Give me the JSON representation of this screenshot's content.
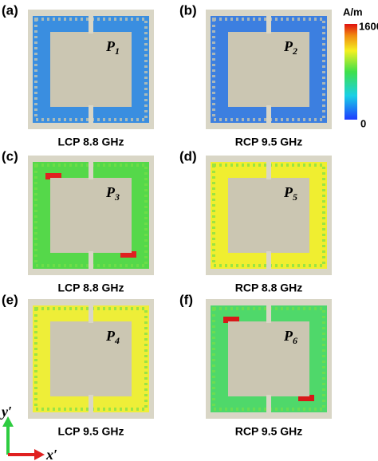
{
  "panels": [
    {
      "tag": "(a)",
      "port": {
        "letter": "P",
        "sub": "1"
      },
      "caption": "LCP  8.8 GHz"
    },
    {
      "tag": "(b)",
      "port": {
        "letter": "P",
        "sub": "2"
      },
      "caption": "RCP  9.5 GHz"
    },
    {
      "tag": "(c)",
      "port": {
        "letter": "P",
        "sub": "3"
      },
      "caption": "LCP  8.8 GHz"
    },
    {
      "tag": "(d)",
      "port": {
        "letter": "P",
        "sub": "5"
      },
      "caption": "RCP  8.8 GHz"
    },
    {
      "tag": "(e)",
      "port": {
        "letter": "P",
        "sub": "4"
      },
      "caption": "LCP  9.5 GHz"
    },
    {
      "tag": "(f)",
      "port": {
        "letter": "P",
        "sub": "6"
      },
      "caption": "RCP  9.5 GHz"
    }
  ],
  "colorbar": {
    "unit": "A/m",
    "max": "1600",
    "min": "0"
  },
  "axes": {
    "y": "y′",
    "x": "x′"
  }
}
